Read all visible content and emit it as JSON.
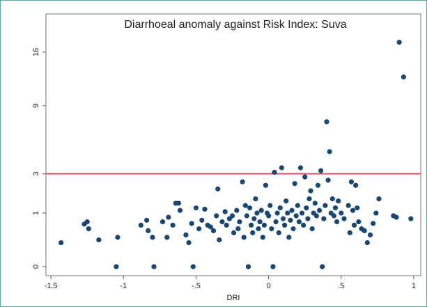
{
  "chart_data": {
    "type": "scatter",
    "title": "Diarrhoeal anomaly against Risk Index: Suva",
    "xlabel": "DRI",
    "yscale": "sqrt",
    "color": "#1a476f",
    "reference_line": {
      "value": 3,
      "color": "#d9536a"
    },
    "xlim": [
      -1.534,
      1.048
    ],
    "ylim": [
      -0.028,
      22.2
    ],
    "xticks": [
      -1.5,
      -1,
      {
        "value": -0.5,
        "label": "-.5"
      },
      0,
      {
        "value": 0.5,
        "label": ".5"
      },
      1
    ],
    "yticks": [
      0,
      1,
      3,
      9,
      16
    ],
    "x": [
      -1.43,
      -1.27,
      -1.25,
      -1.24,
      -1.17,
      -1.05,
      -1.04,
      -0.88,
      -0.84,
      -0.83,
      -0.8,
      -0.79,
      -0.73,
      -0.7,
      -0.69,
      -0.66,
      -0.64,
      -0.62,
      -0.61,
      -0.57,
      -0.55,
      -0.53,
      -0.52,
      -0.5,
      -0.48,
      -0.46,
      -0.44,
      -0.42,
      -0.4,
      -0.38,
      -0.36,
      -0.35,
      -0.34,
      -0.32,
      -0.3,
      -0.29,
      -0.27,
      -0.25,
      -0.24,
      -0.22,
      -0.21,
      -0.2,
      -0.18,
      -0.17,
      -0.16,
      -0.15,
      -0.14,
      -0.13,
      -0.12,
      -0.11,
      -0.1,
      -0.09,
      -0.08,
      -0.07,
      -0.06,
      -0.05,
      -0.04,
      -0.03,
      -0.02,
      -0.01,
      0,
      0.01,
      0.02,
      0.03,
      0.04,
      0.05,
      0.06,
      0.07,
      0.08,
      0.09,
      0.1,
      0.11,
      0.12,
      0.13,
      0.14,
      0.15,
      0.16,
      0.17,
      0.18,
      0.19,
      0.2,
      0.21,
      0.22,
      0.23,
      0.24,
      0.25,
      0.26,
      0.27,
      0.28,
      0.29,
      0.3,
      0.31,
      0.32,
      0.33,
      0.34,
      0.35,
      0.36,
      0.37,
      0.38,
      0.39,
      0.4,
      0.41,
      0.42,
      0.43,
      0.44,
      0.45,
      0.46,
      0.47,
      0.48,
      0.5,
      0.52,
      0.55,
      0.56,
      0.57,
      0.58,
      0.59,
      0.6,
      0.61,
      0.62,
      0.64,
      0.66,
      0.68,
      0.7,
      0.72,
      0.74,
      0.76,
      0.86,
      0.88,
      0.9,
      0.93,
      0.98
    ],
    "values": [
      0.2,
      0.63,
      0.7,
      0.5,
      0.25,
      0,
      0.3,
      0.6,
      0.75,
      0.45,
      0.3,
      0,
      0.7,
      0.3,
      0.85,
      0.6,
      1.4,
      1.4,
      1.1,
      0.35,
      0.2,
      0.65,
      0,
      1.2,
      0.5,
      0.75,
      1.15,
      0.6,
      0.55,
      0.45,
      0.9,
      2.1,
      0.25,
      0.7,
      1.05,
      0.6,
      0.8,
      0.9,
      0.4,
      1.1,
      0.5,
      0.7,
      2.5,
      0.3,
      1.3,
      0.9,
      0,
      1.2,
      0.6,
      0.4,
      0.8,
      1.6,
      1.0,
      0.5,
      0.7,
      1.1,
      0.3,
      0.6,
      2.3,
      1.0,
      0.9,
      1.3,
      0.5,
      0,
      3.1,
      0.7,
      1.0,
      0.4,
      1.2,
      3.4,
      0.8,
      0.6,
      1.5,
      1.0,
      0.3,
      0.75,
      1.1,
      0.5,
      2.4,
      0.9,
      1.3,
      0.7,
      3.4,
      1.0,
      0.6,
      2.8,
      1.2,
      0.8,
      1.6,
      2.0,
      0.5,
      1.0,
      1.4,
      0.9,
      2.3,
      1.1,
      3.2,
      0,
      0.8,
      1.3,
      7.3,
      2.6,
      4.6,
      1.0,
      1.6,
      0.9,
      1.2,
      0.7,
      1.5,
      1.0,
      0.8,
      1.3,
      0.4,
      2.5,
      1.1,
      0.6,
      2.3,
      1.2,
      0.7,
      0.5,
      0.45,
      0.2,
      0.35,
      0.65,
      1.0,
      1.6,
      0.9,
      0.85,
      17.5,
      12.5,
      0.8
    ]
  }
}
